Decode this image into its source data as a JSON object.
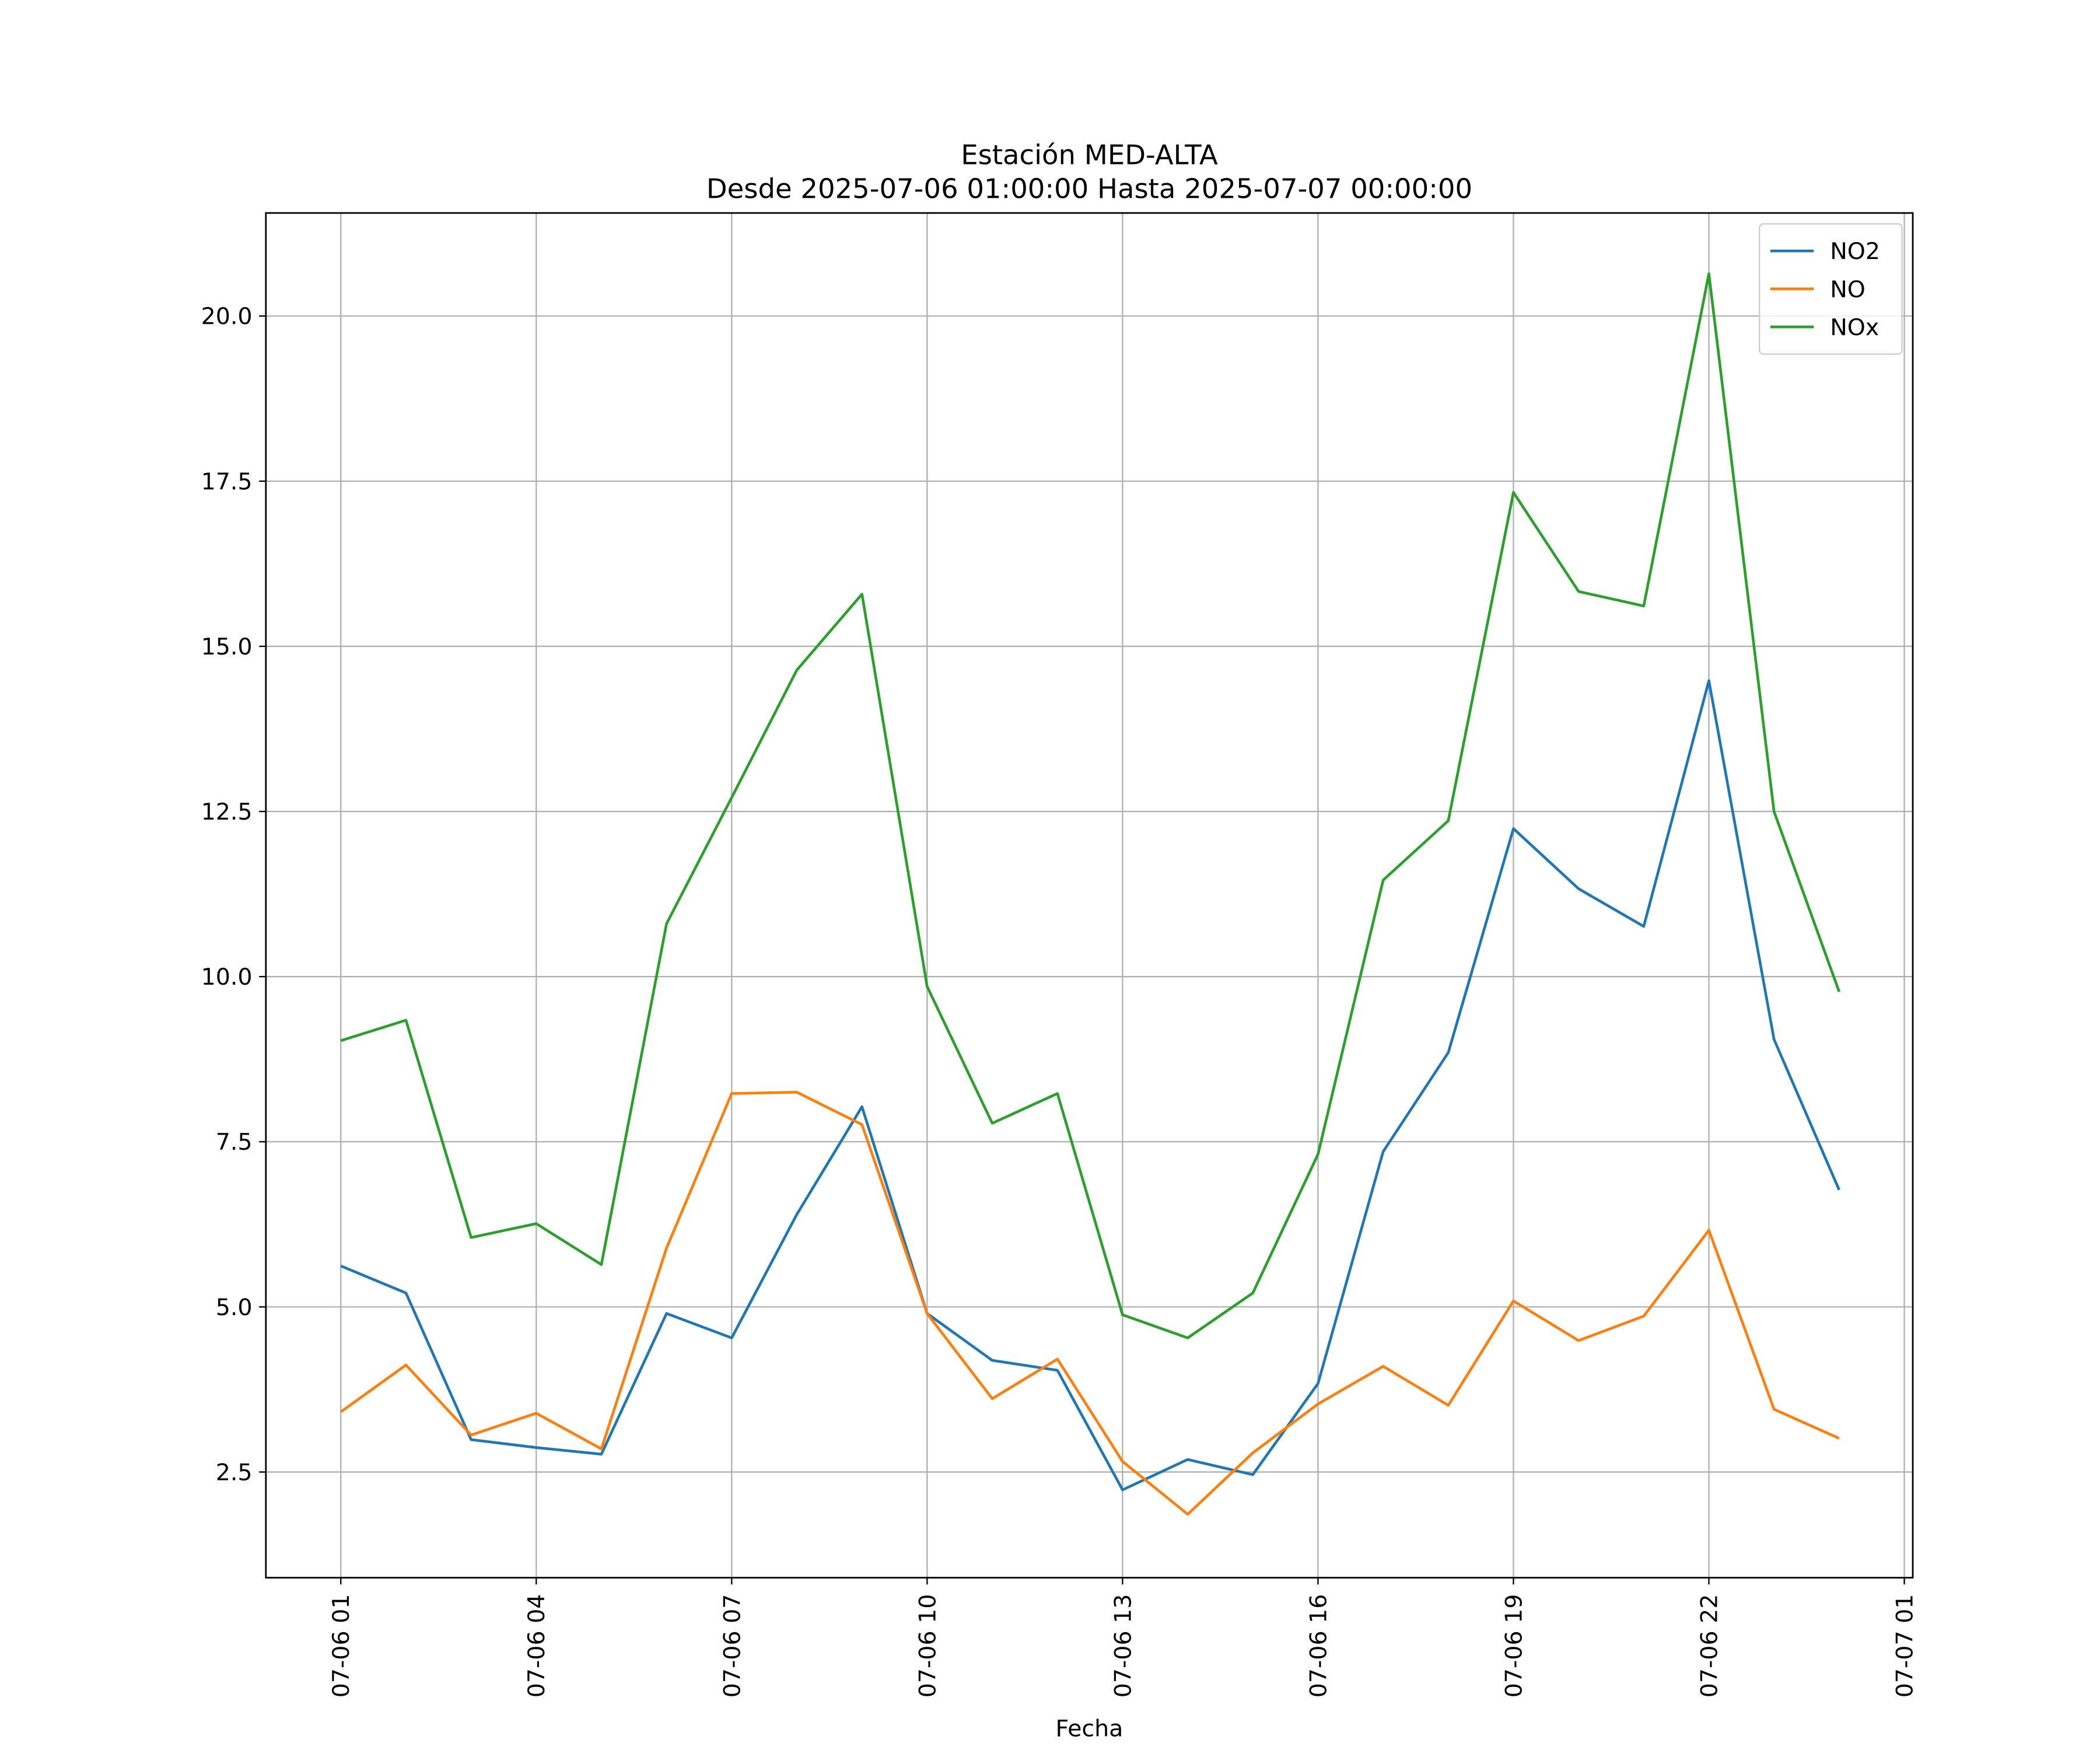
{
  "chart_data": {
    "type": "line",
    "title": "Estación MED-ALTA",
    "subtitle": "Desde 2025-07-06 01:00:00 Hasta 2025-07-07 00:00:00",
    "x_label": "Fecha",
    "x": [
      "07-06 01",
      "07-06 02",
      "07-06 03",
      "07-06 04",
      "07-06 05",
      "07-06 06",
      "07-06 07",
      "07-06 08",
      "07-06 09",
      "07-06 10",
      "07-06 11",
      "07-06 12",
      "07-06 13",
      "07-06 14",
      "07-06 15",
      "07-06 16",
      "07-06 17",
      "07-06 18",
      "07-06 19",
      "07-06 20",
      "07-06 21",
      "07-06 22",
      "07-06 23",
      "07-07 00"
    ],
    "xlim": [
      -1.15,
      24.13
    ],
    "xticks": [
      {
        "value": 0,
        "label": "07-06 01"
      },
      {
        "value": 3,
        "label": "07-06 04"
      },
      {
        "value": 6,
        "label": "07-06 07"
      },
      {
        "value": 9,
        "label": "07-06 10"
      },
      {
        "value": 12,
        "label": "07-06 13"
      },
      {
        "value": 15,
        "label": "07-06 16"
      },
      {
        "value": 18,
        "label": "07-06 19"
      },
      {
        "value": 21,
        "label": "07-06 22"
      },
      {
        "value": 24,
        "label": "07-07 01"
      }
    ],
    "ylim": [
      0.9,
      21.56
    ],
    "yticks": [
      2.5,
      {
        "value": 5,
        "label": "5.0"
      },
      7.5,
      {
        "value": 10,
        "label": "10.0"
      },
      12.5,
      {
        "value": 15,
        "label": "15.0"
      },
      17.5,
      {
        "value": 20,
        "label": "20.0"
      }
    ],
    "grid": true,
    "legend": "upper right",
    "series": [
      {
        "name": "NO2",
        "color": "#1f77b4",
        "values": [
          5.62,
          5.21,
          2.99,
          2.87,
          2.77,
          4.9,
          4.53,
          6.4,
          8.03,
          4.9,
          4.19,
          4.04,
          2.23,
          2.69,
          2.46,
          3.84,
          7.35,
          8.85,
          12.24,
          11.33,
          10.76,
          14.48,
          9.05,
          6.77
        ]
      },
      {
        "name": "NO",
        "color": "#ff7f0e",
        "values": [
          3.41,
          4.12,
          3.06,
          3.39,
          2.85,
          5.89,
          8.23,
          8.25,
          7.76,
          4.9,
          3.61,
          4.21,
          2.66,
          1.86,
          2.79,
          3.53,
          4.1,
          3.51,
          5.09,
          4.49,
          4.86,
          6.16,
          3.45,
          3.01
        ]
      },
      {
        "name": "NOx",
        "color": "#2ca02c",
        "values": [
          9.03,
          9.34,
          6.05,
          6.26,
          5.64,
          10.8,
          12.71,
          14.64,
          15.79,
          9.85,
          7.78,
          8.23,
          4.88,
          4.53,
          5.21,
          7.31,
          11.46,
          12.36,
          17.33,
          15.83,
          15.61,
          20.64,
          12.5,
          9.77
        ]
      }
    ]
  }
}
